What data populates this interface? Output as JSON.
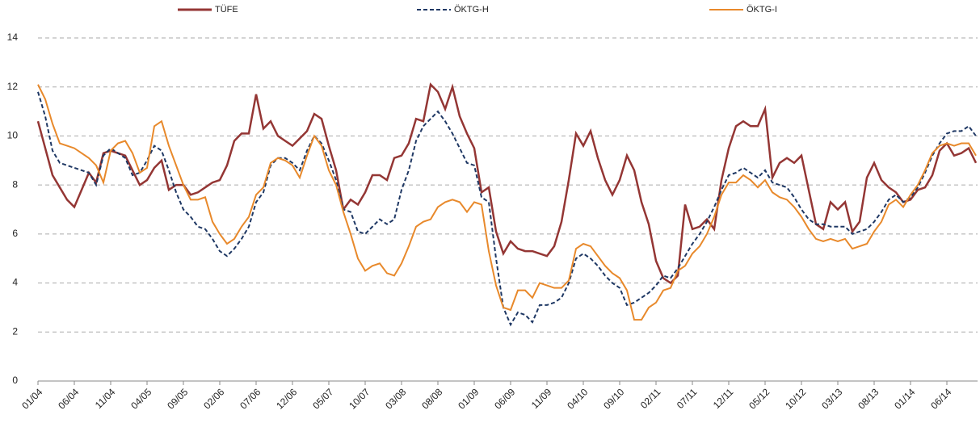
{
  "chart_data": {
    "type": "line",
    "categories": [
      "01/04",
      null,
      null,
      null,
      null,
      "06/04",
      null,
      null,
      null,
      null,
      "11/04",
      null,
      null,
      null,
      null,
      "04/05",
      null,
      null,
      null,
      null,
      "09/05",
      null,
      null,
      null,
      null,
      "02/06",
      null,
      null,
      null,
      null,
      "07/06",
      null,
      null,
      null,
      null,
      "12/06",
      null,
      null,
      null,
      null,
      "05/07",
      null,
      null,
      null,
      null,
      "10/07",
      null,
      null,
      null,
      null,
      "03/08",
      null,
      null,
      null,
      null,
      "08/08",
      null,
      null,
      null,
      null,
      "01/09",
      null,
      null,
      null,
      null,
      "06/09",
      null,
      null,
      null,
      null,
      "11/09",
      null,
      null,
      null,
      null,
      "04/10",
      null,
      null,
      null,
      null,
      "09/10",
      null,
      null,
      null,
      null,
      "02/11",
      null,
      null,
      null,
      null,
      "07/11",
      null,
      null,
      null,
      null,
      "12/11",
      null,
      null,
      null,
      null,
      "05/12",
      null,
      null,
      null,
      null,
      "10/12",
      null,
      null,
      null,
      null,
      "03/13",
      null,
      null,
      null,
      null,
      "08/13",
      null,
      null,
      null,
      null,
      "01/14",
      null,
      null,
      null,
      null,
      "06/14",
      null,
      null,
      null,
      null
    ],
    "series": [
      {
        "name": "TÜFE",
        "color": "#943634",
        "dash": false,
        "values": [
          10.6,
          9.5,
          8.4,
          7.9,
          7.4,
          7.1,
          7.8,
          8.5,
          8.1,
          9.3,
          9.4,
          9.3,
          9.2,
          8.6,
          8.0,
          8.2,
          8.7,
          9.0,
          7.8,
          8.0,
          8.0,
          7.6,
          7.7,
          7.9,
          8.1,
          8.2,
          8.8,
          9.8,
          10.1,
          10.1,
          11.7,
          10.3,
          10.6,
          10.0,
          9.8,
          9.6,
          9.9,
          10.2,
          10.9,
          10.7,
          9.6,
          8.6,
          7.0,
          7.4,
          7.2,
          7.7,
          8.4,
          8.4,
          8.2,
          9.1,
          9.2,
          9.7,
          10.7,
          10.6,
          12.1,
          11.8,
          11.1,
          12.0,
          10.8,
          10.1,
          9.5,
          7.7,
          7.9,
          6.1,
          5.2,
          5.7,
          5.4,
          5.3,
          5.3,
          5.2,
          5.1,
          5.5,
          6.5,
          8.2,
          10.1,
          9.6,
          10.2,
          9.1,
          8.2,
          7.6,
          8.2,
          9.2,
          8.6,
          7.3,
          6.4,
          4.9,
          4.2,
          4.0,
          4.3,
          7.2,
          6.2,
          6.3,
          6.6,
          6.2,
          8.2,
          9.5,
          10.4,
          10.6,
          10.4,
          10.4,
          11.1,
          8.3,
          8.9,
          9.1,
          8.9,
          9.2,
          7.8,
          6.4,
          6.2,
          7.3,
          7.0,
          7.3,
          6.1,
          6.5,
          8.3,
          8.9,
          8.2,
          7.9,
          7.7,
          7.3,
          7.4,
          7.8,
          7.9,
          8.4,
          9.4,
          9.7,
          9.2,
          9.3,
          9.5,
          8.9
        ]
      },
      {
        "name": "ÖKTG-H",
        "color": "#1f3864",
        "dash": true,
        "values": [
          11.8,
          10.8,
          9.4,
          8.9,
          8.8,
          8.7,
          8.6,
          8.5,
          8.0,
          9.2,
          9.5,
          9.3,
          9.1,
          8.4,
          8.5,
          9.0,
          9.6,
          9.4,
          8.6,
          7.7,
          7.0,
          6.7,
          6.3,
          6.2,
          5.8,
          5.3,
          5.1,
          5.4,
          5.8,
          6.3,
          7.3,
          7.7,
          8.8,
          9.1,
          9.1,
          8.9,
          8.6,
          9.4,
          10.0,
          9.7,
          9.0,
          8.2,
          7.0,
          6.9,
          6.1,
          6.0,
          6.3,
          6.6,
          6.4,
          6.6,
          7.8,
          8.6,
          9.8,
          10.4,
          10.7,
          11.0,
          10.6,
          10.1,
          9.5,
          8.9,
          8.8,
          7.5,
          7.3,
          5.0,
          3.0,
          2.3,
          2.8,
          2.7,
          2.4,
          3.1,
          3.1,
          3.2,
          3.4,
          4.0,
          5.0,
          5.2,
          5.0,
          4.7,
          4.3,
          4.0,
          3.8,
          3.1,
          3.2,
          3.4,
          3.6,
          3.9,
          4.3,
          4.2,
          4.6,
          5.1,
          5.6,
          6.0,
          6.5,
          7.1,
          7.8,
          8.4,
          8.5,
          8.7,
          8.5,
          8.3,
          8.6,
          8.1,
          8.0,
          7.9,
          7.5,
          7.0,
          6.6,
          6.4,
          6.4,
          6.3,
          6.3,
          6.3,
          6.0,
          6.1,
          6.2,
          6.5,
          6.9,
          7.4,
          7.6,
          7.3,
          7.5,
          7.9,
          8.5,
          9.2,
          9.7,
          10.1,
          10.2,
          10.2,
          10.4,
          10.0
        ]
      },
      {
        "name": "ÖKTG-I",
        "color": "#e8892b",
        "dash": false,
        "values": [
          12.1,
          11.5,
          10.5,
          9.7,
          9.6,
          9.5,
          9.3,
          9.1,
          8.8,
          8.1,
          9.4,
          9.7,
          9.8,
          9.3,
          8.5,
          8.7,
          10.4,
          10.6,
          9.6,
          8.8,
          8.0,
          7.4,
          7.4,
          7.5,
          6.5,
          6.0,
          5.6,
          5.8,
          6.3,
          6.7,
          7.6,
          7.9,
          8.9,
          9.1,
          9.0,
          8.8,
          8.3,
          9.2,
          10.0,
          9.6,
          8.6,
          8.0,
          6.9,
          6.0,
          5.0,
          4.5,
          4.7,
          4.8,
          4.4,
          4.3,
          4.8,
          5.5,
          6.3,
          6.5,
          6.6,
          7.1,
          7.3,
          7.4,
          7.3,
          6.9,
          7.3,
          7.2,
          5.3,
          3.9,
          3.0,
          2.9,
          3.7,
          3.7,
          3.4,
          4.0,
          3.9,
          3.8,
          3.8,
          4.1,
          5.4,
          5.6,
          5.5,
          5.1,
          4.7,
          4.4,
          4.2,
          3.7,
          2.5,
          2.5,
          3.0,
          3.2,
          3.7,
          3.8,
          4.5,
          4.7,
          5.2,
          5.5,
          6.0,
          6.7,
          7.6,
          8.1,
          8.1,
          8.4,
          8.2,
          7.9,
          8.2,
          7.7,
          7.5,
          7.4,
          7.1,
          6.7,
          6.2,
          5.8,
          5.7,
          5.8,
          5.7,
          5.8,
          5.4,
          5.5,
          5.6,
          6.1,
          6.5,
          7.2,
          7.4,
          7.1,
          7.6,
          8.0,
          8.6,
          9.3,
          9.6,
          9.7,
          9.6,
          9.7,
          9.7,
          9.2
        ]
      }
    ],
    "ylim": [
      0,
      14
    ],
    "yticks": [
      0,
      2,
      4,
      6,
      8,
      10,
      12,
      14
    ],
    "grid": true,
    "legend": "top"
  }
}
